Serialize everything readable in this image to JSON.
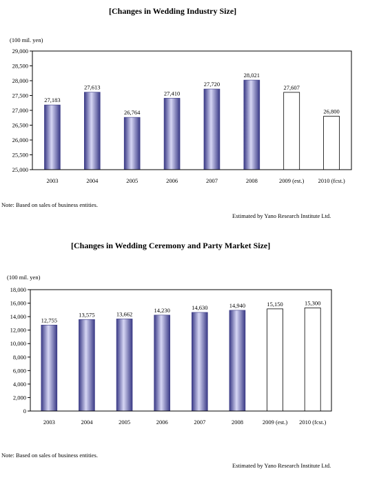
{
  "chart_data": [
    {
      "type": "bar",
      "title": "[Changes in Wedding Industry Size]",
      "ylabel": "(100 mil. yen)",
      "categories": [
        "2003",
        "2004",
        "2005",
        "2006",
        "2007",
        "2008",
        "2009 (est.)",
        "2010 (fcst.)"
      ],
      "values": [
        27183,
        27613,
        26764,
        27410,
        27720,
        28021,
        27607,
        26800
      ],
      "value_labels": [
        "27,183",
        "27,613",
        "26,764",
        "27,410",
        "27,720",
        "28,021",
        "27,607",
        "26,800"
      ],
      "estimated": [
        false,
        false,
        false,
        false,
        false,
        false,
        true,
        true
      ],
      "ylim": [
        25000,
        29000
      ],
      "yticks": [
        25000,
        25500,
        26000,
        26500,
        27000,
        27500,
        28000,
        28500,
        29000
      ],
      "ytick_labels": [
        "25,000",
        "25,500",
        "26,000",
        "26,500",
        "27,000",
        "27,500",
        "28,000",
        "28,500",
        "29,000"
      ],
      "grid": false,
      "note": "Note: Based on sales of business entities.",
      "source": "Estimated by Yano Research Institute Ltd."
    },
    {
      "type": "bar",
      "title": "[Changes in Wedding Ceremony and Party Market Size]",
      "ylabel": "(100 mil. yen)",
      "categories": [
        "2003",
        "2004",
        "2005",
        "2006",
        "2007",
        "2008",
        "2009 (est.)",
        "2010 (fcst.)"
      ],
      "values": [
        12755,
        13575,
        13662,
        14230,
        14630,
        14940,
        15150,
        15300
      ],
      "value_labels": [
        "12,755",
        "13,575",
        "13,662",
        "14,230",
        "14,630",
        "14,940",
        "15,150",
        "15,300"
      ],
      "estimated": [
        false,
        false,
        false,
        false,
        false,
        false,
        true,
        true
      ],
      "ylim": [
        0,
        18000
      ],
      "yticks": [
        0,
        2000,
        4000,
        6000,
        8000,
        10000,
        12000,
        14000,
        16000,
        18000
      ],
      "ytick_labels": [
        "0",
        "2,000",
        "4,000",
        "6,000",
        "8,000",
        "10,000",
        "12,000",
        "14,000",
        "16,000",
        "18,000"
      ],
      "grid": false,
      "note": "Note: Based on sales of business entities.",
      "source": "Estimated by Yano Research Institute Ltd."
    }
  ],
  "colors": {
    "bar_dark": "#3a3a86",
    "bar_light": "#d6d6f4",
    "bar_estimate_fill": "#ffffff",
    "axis": "#000000"
  }
}
